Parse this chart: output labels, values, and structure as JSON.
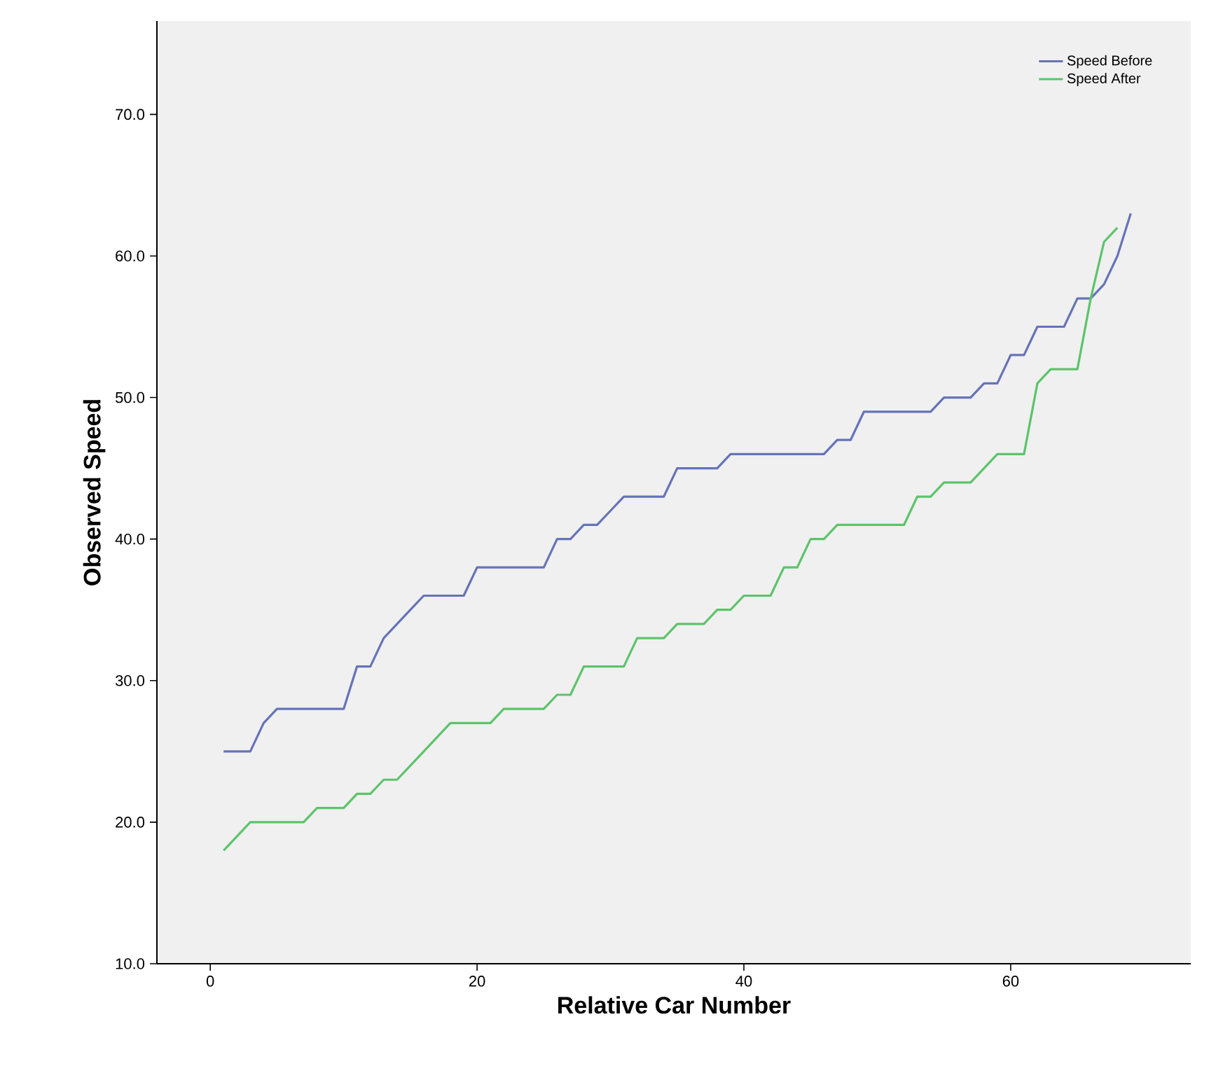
{
  "chart_data": {
    "type": "line",
    "xlabel": "Relative Car Number",
    "ylabel": "Observed Speed",
    "x": [
      1,
      2,
      3,
      4,
      5,
      6,
      7,
      8,
      9,
      10,
      11,
      12,
      13,
      14,
      15,
      16,
      17,
      18,
      19,
      20,
      21,
      22,
      23,
      24,
      25,
      26,
      27,
      28,
      29,
      30,
      31,
      32,
      33,
      34,
      35,
      36,
      37,
      38,
      39,
      40,
      41,
      42,
      43,
      44,
      45,
      46,
      47,
      48,
      49,
      50,
      51,
      52,
      53,
      54,
      55,
      56,
      57,
      58,
      59,
      60,
      61,
      62,
      63,
      64,
      65,
      66,
      67,
      68,
      69
    ],
    "series": [
      {
        "name": "Speed Before",
        "color": "#6673b9",
        "values": [
          25,
          25,
          25,
          27,
          28,
          28,
          28,
          28,
          28,
          28,
          31,
          31,
          33,
          34,
          35,
          36,
          36,
          36,
          36,
          38,
          38,
          38,
          38,
          38,
          38,
          40,
          40,
          41,
          41,
          42,
          43,
          43,
          43,
          43,
          45,
          45,
          45,
          45,
          46,
          46,
          46,
          46,
          46,
          46,
          46,
          46,
          47,
          47,
          49,
          49,
          49,
          49,
          49,
          49,
          50,
          50,
          50,
          51,
          51,
          53,
          53,
          55,
          55,
          55,
          57,
          57,
          58,
          60,
          63
        ]
      },
      {
        "name": "Speed After",
        "color": "#5cc46a",
        "values": [
          18,
          19,
          20,
          20,
          20,
          20,
          20,
          21,
          21,
          21,
          22,
          22,
          23,
          23,
          24,
          25,
          26,
          27,
          27,
          27,
          27,
          28,
          28,
          28,
          28,
          29,
          29,
          31,
          31,
          31,
          31,
          33,
          33,
          33,
          34,
          34,
          34,
          35,
          35,
          36,
          36,
          36,
          38,
          38,
          40,
          40,
          41,
          41,
          41,
          41,
          41,
          41,
          43,
          43,
          44,
          44,
          44,
          45,
          46,
          46,
          46,
          51,
          52,
          52,
          52,
          57,
          61,
          62,
          null
        ]
      }
    ],
    "xlim": [
      -4,
      73.5
    ],
    "ylim": [
      10,
      76.6
    ],
    "xticks": [
      0,
      20,
      40,
      60
    ],
    "yticks": [
      {
        "value": 10,
        "label": "10.0"
      },
      {
        "value": 20,
        "label": "20.0"
      },
      {
        "value": 30,
        "label": "30.0"
      },
      {
        "value": 40,
        "label": "40.0"
      },
      {
        "value": 50,
        "label": "50.0"
      },
      {
        "value": 60,
        "label": "60.0"
      },
      {
        "value": 70,
        "label": "70.0"
      }
    ],
    "legend": "top right",
    "grid": false,
    "marker": "none",
    "line_style": "solid"
  }
}
